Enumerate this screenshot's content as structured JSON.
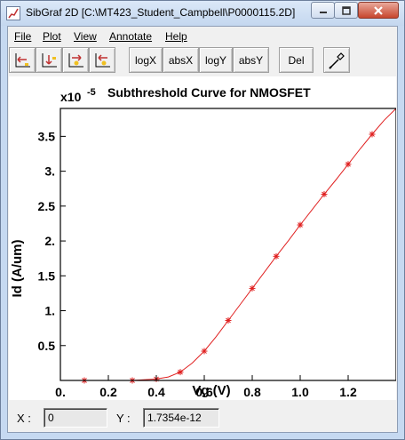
{
  "window": {
    "title": "SibGraf 2D [C:\\MT423_Student_Campbell\\P0000115.2D]"
  },
  "menu": [
    {
      "label": "File"
    },
    {
      "label": "Plot"
    },
    {
      "label": "View"
    },
    {
      "label": "Annotate"
    },
    {
      "label": "Help"
    }
  ],
  "toolbar": {
    "logx": "logX",
    "absx": "absX",
    "logy": "logY",
    "absy": "absY",
    "del": "Del"
  },
  "status": {
    "x_label": "X :",
    "x_value": "0",
    "y_label": "Y :",
    "y_value": "1.7354e-12"
  },
  "chart_data": {
    "type": "line",
    "title": "Subthreshold Curve for NMOSFET",
    "xlabel": "Vg (V)",
    "ylabel": "Id (A/um)",
    "y_exponent_base": "x10",
    "y_exponent": "-5",
    "xlim": [
      0,
      1.4
    ],
    "ylim": [
      0,
      3.9
    ],
    "x_ticks": [
      0,
      0.2,
      0.4,
      0.6,
      0.8,
      1.0,
      1.2
    ],
    "x_tick_labels": [
      "0.",
      "0.2",
      "0.4",
      "0.6",
      "0.8",
      "1.0",
      "1.2"
    ],
    "y_ticks": [
      0.5,
      1.0,
      1.5,
      2.0,
      2.5,
      3.0,
      3.5
    ],
    "y_tick_labels": [
      "0.5",
      "1.",
      "1.5",
      "2.",
      "2.5",
      "3.",
      "3.5"
    ],
    "series_color": "#e02020",
    "series": [
      {
        "curve": {
          "x": [
            0.0,
            0.3,
            0.4,
            0.45,
            0.5,
            0.55,
            0.6,
            0.65,
            0.7,
            0.75,
            0.8,
            0.85,
            0.9,
            0.95,
            1.0,
            1.05,
            1.1,
            1.15,
            1.2,
            1.25,
            1.3,
            1.35,
            1.4
          ],
          "y": [
            0.0,
            0.0,
            0.02,
            0.05,
            0.12,
            0.25,
            0.42,
            0.63,
            0.86,
            1.09,
            1.32,
            1.55,
            1.78,
            2.0,
            2.23,
            2.45,
            2.67,
            2.88,
            3.1,
            3.32,
            3.53,
            3.73,
            3.9
          ]
        },
        "markers": {
          "x": [
            0.1,
            0.3,
            0.4,
            0.5,
            0.6,
            0.7,
            0.8,
            0.9,
            1.0,
            1.1,
            1.2,
            1.3
          ],
          "y": [
            0.0,
            0.0,
            0.02,
            0.12,
            0.42,
            0.86,
            1.32,
            1.78,
            2.23,
            2.67,
            3.1,
            3.53
          ]
        }
      }
    ]
  }
}
